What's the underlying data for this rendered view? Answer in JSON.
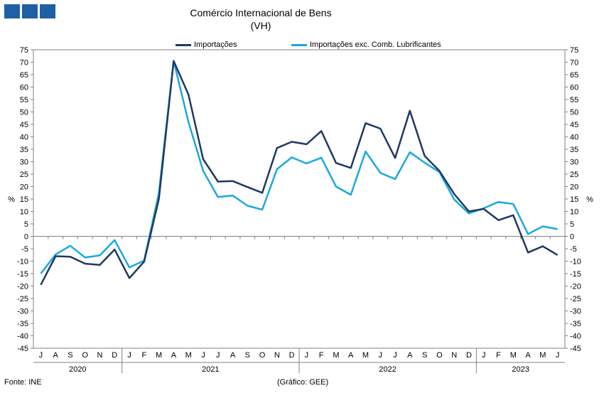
{
  "title": "Comércio Internacional de Bens",
  "subtitle": "(VH)",
  "source": "Fonte: INE",
  "credit": "(Gráfico: GEE)",
  "logo": {
    "color": "#1F5FA5"
  },
  "chart_data": {
    "type": "line",
    "title": "Comércio Internacional de Bens",
    "subtitle": "(VH)",
    "ylabel": "%",
    "y2label": "%",
    "ylim": [
      -45,
      75
    ],
    "ytick_step": 5,
    "grid": false,
    "legend_position": "top",
    "months": [
      "J",
      "A",
      "S",
      "O",
      "N",
      "D",
      "J",
      "F",
      "M",
      "A",
      "M",
      "J",
      "J",
      "A",
      "S",
      "O",
      "N",
      "D",
      "J",
      "F",
      "M",
      "A",
      "M",
      "J",
      "J",
      "A",
      "S",
      "O",
      "N",
      "D",
      "J",
      "F",
      "M",
      "A",
      "M",
      "J"
    ],
    "years": [
      {
        "label": "2020",
        "start": 0,
        "end": 5
      },
      {
        "label": "2021",
        "start": 6,
        "end": 17
      },
      {
        "label": "2022",
        "start": 18,
        "end": 29
      },
      {
        "label": "2023",
        "start": 30,
        "end": 35
      }
    ],
    "series": [
      {
        "name": "Importações",
        "color": "#1F3864",
        "values": [
          -19.5,
          -8,
          -8.2,
          -11,
          -11.5,
          -5.3,
          -16.8,
          -10.2,
          15,
          70.5,
          57,
          31,
          22,
          22.2,
          19.8,
          17.5,
          35.5,
          38,
          37,
          42.3,
          29.5,
          27.5,
          45.5,
          43.3,
          31.5,
          50.5,
          32.3,
          26.3,
          17,
          10,
          11,
          6.5,
          8.5,
          -6.5,
          -4,
          -7.5
        ]
      },
      {
        "name": "Importações exc. Comb. Lubrificantes",
        "color": "#1BA7E1",
        "values": [
          -15,
          -7.3,
          -3.8,
          -8.5,
          -7.7,
          -1.5,
          -12.5,
          -9.8,
          17.5,
          70.5,
          46,
          26.3,
          15.8,
          16.4,
          12.3,
          10.7,
          27,
          31.7,
          29.3,
          31.6,
          20,
          16.7,
          34.1,
          25.5,
          23,
          33.8,
          29.6,
          25.8,
          14.8,
          9.2,
          11.3,
          13.8,
          13,
          0.9,
          4,
          2.9
        ]
      }
    ]
  }
}
